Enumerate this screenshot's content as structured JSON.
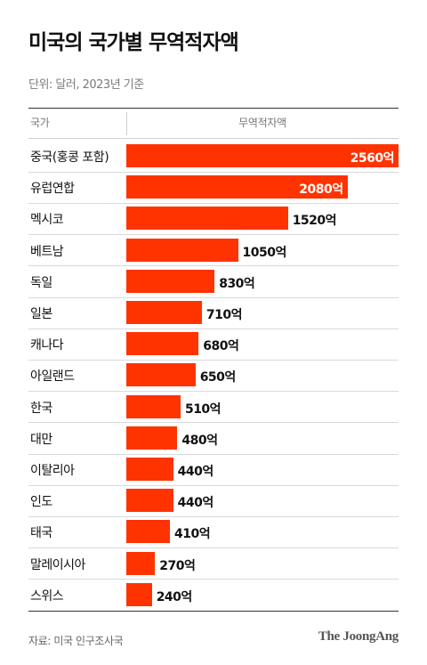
{
  "title": "미국의 국가별 무역적자액",
  "subtitle": "단위: 달러, 2023년 기준",
  "header": {
    "country": "국가",
    "value": "무역적자액"
  },
  "source": "자료: 미국 인구조사국",
  "brand": "The JoongAng",
  "colors": {
    "bar": "#ff3300",
    "label_inside": "#ffffff",
    "label_outside": "#111111"
  },
  "chart_data": {
    "type": "bar",
    "orientation": "horizontal",
    "categories": [
      "중국(홍콩 포함)",
      "유럽연합",
      "멕시코",
      "베트남",
      "독일",
      "일본",
      "캐나다",
      "아일랜드",
      "한국",
      "대만",
      "이탈리아",
      "인도",
      "태국",
      "말레이시아",
      "스위스"
    ],
    "values": [
      2560,
      2080,
      1520,
      1050,
      830,
      710,
      680,
      650,
      510,
      480,
      440,
      440,
      410,
      270,
      240
    ],
    "value_labels": [
      "2560억",
      "2080억",
      "1520억",
      "1050억",
      "830억",
      "710억",
      "680억",
      "650억",
      "510억",
      "480억",
      "440억",
      "440억",
      "410억",
      "270억",
      "240억"
    ],
    "title": "미국의 국가별 무역적자액",
    "xlabel": "무역적자액",
    "ylabel": "국가",
    "xlim": [
      0,
      2560
    ],
    "grid": false,
    "legend": "none"
  }
}
